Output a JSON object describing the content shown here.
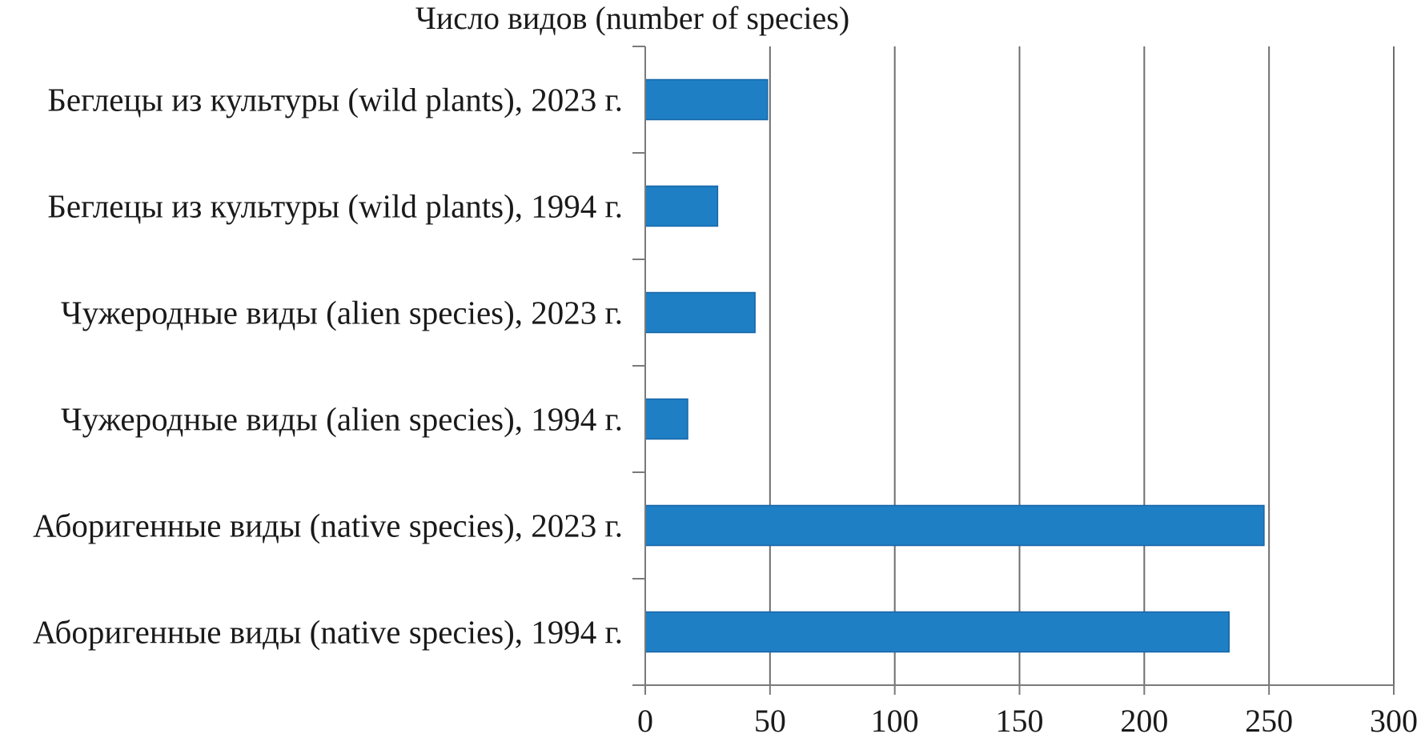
{
  "chart_data": {
    "type": "bar",
    "orientation": "horizontal",
    "title": "Число видов (number of species)",
    "xlabel": "",
    "ylabel": "",
    "categories": [
      "Беглецы из культуры (wild plants), 2023 г.",
      "Беглецы из культуры (wild plants), 1994 г.",
      "Чужеродные виды (alien species), 2023 г.",
      "Чужеродные виды (alien species), 1994 г.",
      "Аборигенные виды (native species), 2023 г.",
      "Аборигенные виды (native species), 1994 г."
    ],
    "values": [
      49,
      29,
      44,
      17,
      248,
      234
    ],
    "xlim": [
      0,
      300
    ],
    "xticks": [
      0,
      50,
      100,
      150,
      200,
      250,
      300
    ],
    "xtick_labels": [
      "0",
      "50",
      "100",
      "150",
      "200",
      "250",
      "300"
    ],
    "grid": "vertical",
    "legend": "none",
    "bar_color": "#1f7fc4",
    "bar_edge_color": "#1766a8",
    "grid_color": "#6e6e6e",
    "axis_color": "#7a7a7a"
  }
}
